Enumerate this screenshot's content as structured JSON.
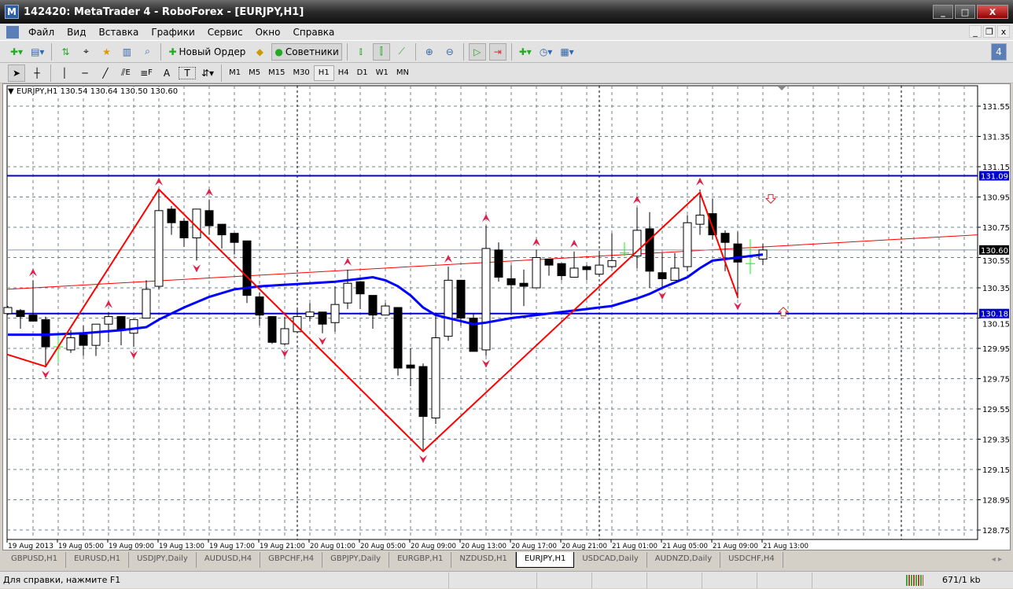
{
  "window": {
    "title": "142420: MetaTrader 4 - RoboForex - [EURJPY,H1]"
  },
  "menu": [
    "Файл",
    "Вид",
    "Вставка",
    "Графики",
    "Сервис",
    "Окно",
    "Справка"
  ],
  "toolbar": {
    "new_order": "Новый Ордер",
    "experts": "Советники",
    "notifications_count": "4"
  },
  "drawing_tools": {
    "fibo_e": "E",
    "fibo_f": "F",
    "text": "A",
    "label": "T"
  },
  "timeframes": [
    "M1",
    "M5",
    "M15",
    "M30",
    "H1",
    "H4",
    "D1",
    "W1",
    "MN"
  ],
  "active_timeframe": "H1",
  "chart": {
    "info": "EURJPY,H1  130.54 130.64 130.50 130.60",
    "colors": {
      "bull_bar": "#000000",
      "bear_body": "#000000",
      "bull_body": "#ffffff",
      "doji": "#00ff00",
      "ma": "#0000ff",
      "zigzag": "#ff0000",
      "levels": "#0000cc",
      "grid": "#708090",
      "trendline": "#ff0000"
    }
  },
  "chart_data": {
    "type": "candlestick",
    "symbol": "EURJPY",
    "timeframe": "H1",
    "ylim": [
      128.65,
      131.65
    ],
    "yticks": [
      "131.55",
      "131.35",
      "131.15",
      "130.95",
      "130.75",
      "130.55",
      "130.35",
      "130.15",
      "129.95",
      "129.75",
      "129.55",
      "129.35",
      "129.15",
      "128.95",
      "128.75"
    ],
    "xticks": [
      "19 Aug 2013",
      "19 Aug 05:00",
      "19 Aug 09:00",
      "19 Aug 13:00",
      "19 Aug 17:00",
      "19 Aug 21:00",
      "20 Aug 01:00",
      "20 Aug 05:00",
      "20 Aug 09:00",
      "20 Aug 13:00",
      "20 Aug 17:00",
      "20 Aug 21:00",
      "21 Aug 01:00",
      "21 Aug 05:00",
      "21 Aug 09:00",
      "21 Aug 13:00"
    ],
    "ohlc": [
      [
        130.18,
        130.23,
        130.17,
        130.22
      ],
      [
        130.2,
        130.21,
        130.08,
        130.16
      ],
      [
        130.17,
        130.4,
        130.13,
        130.13
      ],
      [
        130.14,
        130.16,
        129.83,
        129.96
      ],
      [
        129.96,
        130.05,
        129.86,
        129.96
      ],
      [
        129.94,
        130.07,
        129.92,
        130.02
      ],
      [
        130.04,
        130.1,
        129.9,
        129.97
      ],
      [
        129.97,
        130.11,
        129.9,
        130.11
      ],
      [
        130.11,
        130.19,
        129.99,
        130.16
      ],
      [
        130.16,
        130.16,
        129.97,
        130.07
      ],
      [
        130.05,
        130.14,
        129.96,
        130.14
      ],
      [
        130.15,
        130.4,
        130.15,
        130.34
      ],
      [
        130.36,
        131.0,
        130.34,
        130.86
      ],
      [
        130.87,
        130.89,
        130.7,
        130.78
      ],
      [
        130.79,
        130.81,
        130.62,
        130.68
      ],
      [
        130.68,
        130.87,
        130.53,
        130.87
      ],
      [
        130.86,
        130.93,
        130.7,
        130.76
      ],
      [
        130.77,
        130.77,
        130.61,
        130.7
      ],
      [
        130.71,
        130.71,
        130.57,
        130.65
      ],
      [
        130.66,
        130.66,
        130.25,
        130.3
      ],
      [
        130.29,
        130.32,
        130.1,
        130.17
      ],
      [
        130.16,
        130.16,
        129.98,
        129.99
      ],
      [
        129.98,
        130.16,
        129.97,
        130.08
      ],
      [
        130.06,
        130.21,
        130.05,
        130.16
      ],
      [
        130.16,
        130.25,
        130.13,
        130.19
      ],
      [
        130.19,
        130.19,
        130.05,
        130.11
      ],
      [
        130.12,
        130.36,
        130.06,
        130.24
      ],
      [
        130.25,
        130.47,
        130.21,
        130.38
      ],
      [
        130.39,
        130.39,
        130.21,
        130.31
      ],
      [
        130.3,
        130.3,
        130.08,
        130.17
      ],
      [
        130.17,
        130.25,
        130.17,
        130.23
      ],
      [
        130.22,
        130.22,
        129.77,
        129.82
      ],
      [
        129.84,
        129.95,
        129.7,
        129.82
      ],
      [
        129.83,
        129.85,
        129.27,
        129.5
      ],
      [
        129.49,
        130.17,
        129.45,
        130.02
      ],
      [
        130.03,
        130.49,
        130.0,
        130.4
      ],
      [
        130.4,
        130.4,
        130.1,
        130.15
      ],
      [
        130.15,
        130.18,
        129.93,
        129.93
      ],
      [
        129.94,
        130.76,
        129.9,
        130.61
      ],
      [
        130.6,
        130.65,
        130.39,
        130.42
      ],
      [
        130.41,
        130.5,
        130.17,
        130.37
      ],
      [
        130.38,
        130.47,
        130.23,
        130.36
      ],
      [
        130.35,
        130.6,
        130.35,
        130.55
      ],
      [
        130.54,
        130.54,
        130.43,
        130.5
      ],
      [
        130.51,
        130.51,
        130.4,
        130.43
      ],
      [
        130.42,
        130.59,
        130.42,
        130.48
      ],
      [
        130.49,
        130.5,
        130.4,
        130.47
      ],
      [
        130.44,
        130.58,
        130.44,
        130.5
      ],
      [
        130.49,
        130.71,
        130.48,
        130.53
      ],
      [
        130.58,
        130.65,
        130.56,
        130.58
      ],
      [
        130.56,
        130.88,
        130.48,
        130.73
      ],
      [
        130.74,
        130.85,
        130.35,
        130.46
      ],
      [
        130.45,
        130.58,
        130.35,
        130.41
      ],
      [
        130.4,
        130.58,
        130.4,
        130.48
      ],
      [
        130.49,
        130.83,
        130.46,
        130.78
      ],
      [
        130.77,
        131.0,
        130.7,
        130.83
      ],
      [
        130.84,
        130.94,
        130.67,
        130.7
      ],
      [
        130.71,
        130.73,
        130.46,
        130.65
      ],
      [
        130.64,
        130.72,
        130.28,
        130.52
      ],
      [
        130.51,
        130.67,
        130.44,
        130.51
      ],
      [
        130.54,
        130.64,
        130.5,
        130.6
      ]
    ],
    "moving_average": [
      [
        0,
        130.04
      ],
      [
        3,
        130.04
      ],
      [
        6,
        130.05
      ],
      [
        9,
        130.07
      ],
      [
        11,
        130.09
      ],
      [
        12,
        130.14
      ],
      [
        14,
        130.22
      ],
      [
        16,
        130.29
      ],
      [
        18,
        130.34
      ],
      [
        20,
        130.36
      ],
      [
        22,
        130.37
      ],
      [
        24,
        130.38
      ],
      [
        26,
        130.39
      ],
      [
        28,
        130.41
      ],
      [
        29,
        130.42
      ],
      [
        30,
        130.4
      ],
      [
        31,
        130.36
      ],
      [
        32,
        130.3
      ],
      [
        33,
        130.22
      ],
      [
        34,
        130.17
      ],
      [
        35,
        130.15
      ],
      [
        36,
        130.13
      ],
      [
        37,
        130.11
      ],
      [
        38,
        130.12
      ],
      [
        40,
        130.15
      ],
      [
        42,
        130.17
      ],
      [
        44,
        130.19
      ],
      [
        46,
        130.21
      ],
      [
        48,
        130.23
      ],
      [
        50,
        130.28
      ],
      [
        51,
        130.31
      ],
      [
        52,
        130.35
      ],
      [
        54,
        130.42
      ],
      [
        55,
        130.48
      ],
      [
        56,
        130.53
      ],
      [
        58,
        130.55
      ],
      [
        60,
        130.57
      ]
    ],
    "zigzag": [
      [
        0,
        129.91
      ],
      [
        3,
        129.83
      ],
      [
        12,
        131.0
      ],
      [
        33,
        129.27
      ],
      [
        55,
        130.98
      ],
      [
        58,
        130.29
      ]
    ],
    "trendline": [
      [
        0,
        130.34
      ],
      [
        77,
        130.7
      ]
    ],
    "levels": [
      {
        "price": 131.09,
        "label": "131.09"
      },
      {
        "price": 130.18,
        "label": "130.18"
      }
    ],
    "current_price": {
      "price": 130.6,
      "label": "130.60"
    },
    "fractals_up": [
      2,
      8,
      12,
      16,
      27,
      35,
      38,
      42,
      45,
      50,
      55
    ],
    "fractals_down": [
      3,
      10,
      15,
      22,
      25,
      33,
      38,
      52,
      58
    ],
    "signal_arrows": [
      {
        "dir": "down",
        "index": 61,
        "price": 130.94
      },
      {
        "dir": "up",
        "index": 62,
        "price": 130.19
      }
    ],
    "day_separators": [
      23,
      47,
      71
    ]
  },
  "tabs": [
    "GBPUSD,H1",
    "EURUSD,H1",
    "USDJPY,Daily",
    "AUDUSD,H4",
    "GBPCHF,H4",
    "GBPJPY,Daily",
    "EURGBP,H1",
    "NZDUSD,H1",
    "EURJPY,H1",
    "USDCAD,Daily",
    "AUDNZD,Daily",
    "USDCHF,H4"
  ],
  "active_tab": "EURJPY,H1",
  "status": {
    "help": "Для справки, нажмите F1",
    "traffic": "671/1 kb"
  }
}
